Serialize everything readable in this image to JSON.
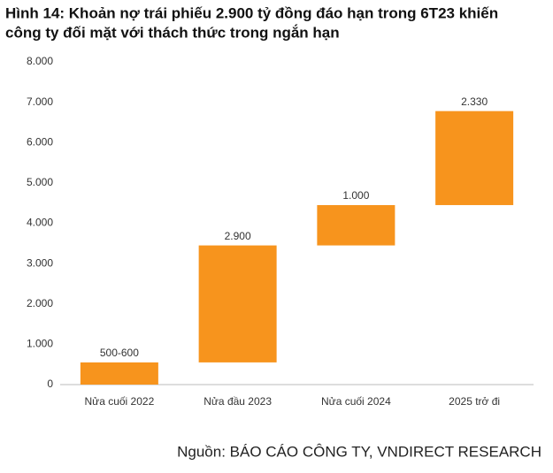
{
  "chart_data": {
    "type": "waterfall",
    "title": [
      "Hình 14: Khoản nợ trái phiếu 2.900 tỷ đồng đáo hạn trong 6T23 khiến",
      "công ty đối mặt với thách thức trong ngắn hạn"
    ],
    "source": "Nguồn: BÁO CÁO CÔNG TY, VNDIRECT RESEARCH",
    "categories": [
      "Nửa cuối 2022",
      "Nửa đầu 2023",
      "Nửa cuối 2024",
      "2025 trở đi"
    ],
    "values": [
      550,
      2900,
      1000,
      2330
    ],
    "value_labels": [
      "500-600",
      "2.900",
      "1.000",
      "2.330"
    ],
    "color": "#f7941d",
    "ylim": [
      0,
      8000
    ],
    "yticks": [
      0,
      {
        "value": 1000,
        "label": "1.000"
      },
      {
        "value": 2000,
        "label": "2.000"
      },
      {
        "value": 3000,
        "label": "3.000"
      },
      {
        "value": 4000,
        "label": "4.000"
      },
      {
        "value": 5000,
        "label": "5.000"
      },
      {
        "value": 6000,
        "label": "6.000"
      },
      {
        "value": 7000,
        "label": "7.000"
      },
      {
        "value": 8000,
        "label": "8.000"
      }
    ],
    "grid": false
  }
}
